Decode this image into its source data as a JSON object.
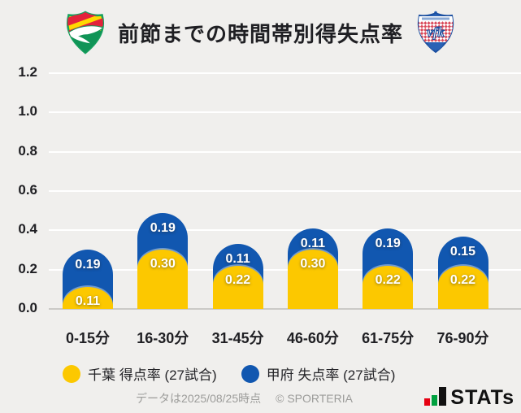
{
  "header": {
    "title": "前節までの時間帯別得失点率",
    "left_logo": "jef-united-chiba-crest",
    "right_logo": "ventforet-kofu-crest"
  },
  "chart_data": {
    "type": "bar",
    "stacked": true,
    "title": "前節までの時間帯別得失点率",
    "categories": [
      "0-15分",
      "16-30分",
      "31-45分",
      "46-60分",
      "61-75分",
      "76-90分"
    ],
    "series": [
      {
        "name": "千葉 得点率 (27試合)",
        "color": "#fcc800",
        "values": [
          0.11,
          0.3,
          0.22,
          0.3,
          0.22,
          0.22
        ]
      },
      {
        "name": "甲府 失点率 (27試合)",
        "color": "#1157b0",
        "values": [
          0.19,
          0.19,
          0.11,
          0.11,
          0.19,
          0.15
        ]
      }
    ],
    "ylim": [
      0,
      1.2
    ],
    "ytick_labels": [
      "0.0",
      "0.2",
      "0.4",
      "0.6",
      "0.8",
      "1.0",
      "1.2"
    ],
    "grid": true,
    "legend_position": "bottom"
  },
  "legend": {
    "items": [
      {
        "label": "千葉 得点率 (27試合)",
        "color": "#fcc800"
      },
      {
        "label": "甲府 失点率 (27試合)",
        "color": "#1157b0"
      }
    ]
  },
  "footer": {
    "note": "データは2025/08/25時点",
    "copyright": "© SPORTERIA",
    "brand": "STATs",
    "brand_colors": {
      "red": "#e60012",
      "green": "#00a13f",
      "black": "#111111"
    }
  },
  "colors": {
    "background": "#f0efed",
    "gridline": "#ffffff",
    "baseline": "#cbcac7",
    "text_dark": "#1f1f23",
    "bar_yellow": "#fcc800",
    "bar_blue": "#1157b0",
    "footer_gray": "#9c9c9a"
  }
}
